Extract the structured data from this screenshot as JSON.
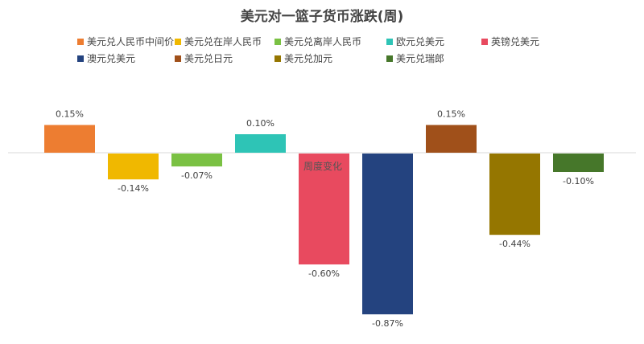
{
  "chart_data": {
    "type": "bar",
    "title": "美元对一篮子货币涨跌(周)",
    "annotation": "周度变化",
    "categories": [
      "美元兑人民币中间价",
      "美元兑在岸人民币",
      "美元兑离岸人民币",
      "欧元兑美元",
      "英镑兑美元",
      "澳元兑美元",
      "美元兑日元",
      "美元兑加元",
      "美元兑瑞郎"
    ],
    "values": [
      0.15,
      -0.14,
      -0.07,
      0.1,
      -0.6,
      -0.87,
      0.15,
      -0.44,
      -0.1
    ],
    "labels": [
      "0.15%",
      "-0.14%",
      "-0.07%",
      "0.10%",
      "-0.60%",
      "-0.87%",
      "0.15%",
      "-0.44%",
      "-0.10%"
    ],
    "colors": [
      "#ED7D31",
      "#F0B800",
      "#7AC143",
      "#2EC4B6",
      "#E84A5F",
      "#24437F",
      "#A0501A",
      "#957600",
      "#46772A"
    ],
    "ylim": [
      -0.87,
      0.15
    ],
    "grid": false,
    "legend": "top"
  }
}
